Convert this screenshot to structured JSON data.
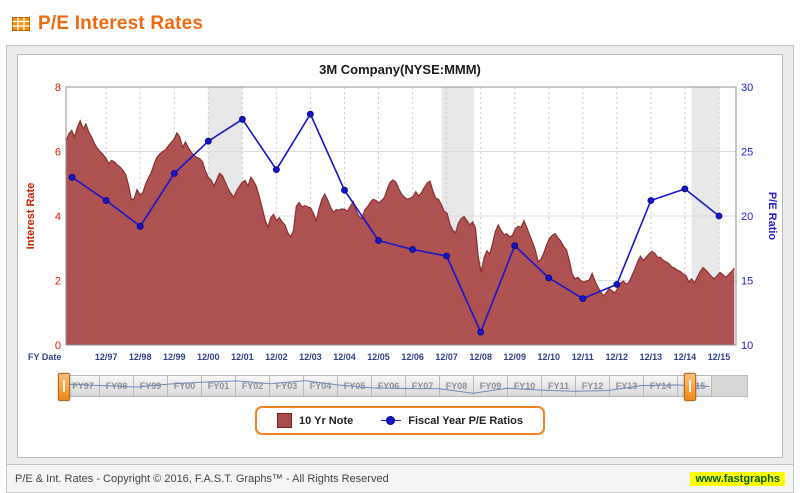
{
  "header": {
    "title": "P/E Interest Rates"
  },
  "chart_data": {
    "type": "line",
    "title": "3M Company(NYSE:MMM)",
    "x_axis_label": "FY Date",
    "x_tick_labels": [
      "12/97",
      "12/98",
      "12/99",
      "12/00",
      "12/01",
      "12/02",
      "12/03",
      "12/04",
      "12/05",
      "12/06",
      "12/07",
      "12/08",
      "12/09",
      "12/10",
      "12/11",
      "12/12",
      "12/13",
      "12/14",
      "12/15"
    ],
    "x_tick_positions": [
      1997,
      1998,
      1999,
      2000,
      2001,
      2002,
      2003,
      2004,
      2005,
      2006,
      2007,
      2008,
      2009,
      2010,
      2011,
      2012,
      2013,
      2014,
      2015
    ],
    "x_range": [
      1995.82,
      2015.5
    ],
    "left_axis": {
      "label": "Interest Rate",
      "ticks": [
        0,
        2,
        4,
        6,
        8
      ],
      "range": [
        0,
        8
      ],
      "color": "#cc2200"
    },
    "right_axis": {
      "label": "P/E Ratio",
      "ticks": [
        10,
        15,
        20,
        25,
        30
      ],
      "range": [
        10,
        30
      ],
      "color": "#2222cc"
    },
    "grid_bands": [
      [
        2000.0,
        2001.0
      ],
      [
        2006.85,
        2007.8
      ],
      [
        2014.2,
        2015.02
      ]
    ],
    "series": [
      {
        "name": "10 Yr Note",
        "type": "area",
        "axis": "left",
        "fill": "#af5252",
        "stroke": "#8a2e2e",
        "x_start": 1995.82,
        "x_end": 2015.45,
        "values": [
          6.3,
          6.55,
          6.65,
          6.45,
          6.75,
          6.95,
          6.7,
          6.85,
          6.6,
          6.45,
          6.25,
          6.1,
          6.0,
          5.9,
          5.8,
          5.62,
          5.72,
          5.68,
          5.58,
          5.52,
          5.42,
          5.28,
          4.95,
          4.5,
          4.55,
          4.82,
          4.65,
          4.72,
          4.98,
          5.18,
          5.35,
          5.62,
          5.82,
          5.92,
          6.0,
          6.05,
          6.18,
          6.28,
          6.38,
          6.58,
          6.45,
          6.12,
          6.3,
          6.12,
          5.98,
          5.88,
          5.82,
          5.78,
          5.68,
          5.4,
          5.2,
          5.12,
          4.92,
          5.12,
          5.32,
          5.25,
          5.05,
          4.85,
          4.7,
          4.58,
          4.78,
          4.92,
          5.05,
          5.1,
          4.92,
          5.2,
          5.08,
          4.9,
          4.58,
          4.25,
          3.88,
          3.65,
          3.95,
          4.05,
          3.85,
          3.95,
          3.82,
          3.72,
          3.48,
          3.35,
          3.55,
          4.3,
          4.42,
          4.28,
          4.32,
          4.28,
          4.25,
          4.08,
          3.85,
          4.22,
          4.52,
          4.68,
          4.5,
          4.28,
          4.12,
          4.2,
          4.18,
          4.22,
          4.2,
          4.15,
          4.3,
          4.45,
          4.18,
          4.0,
          3.92,
          4.18,
          4.28,
          4.42,
          4.52,
          4.48,
          4.4,
          4.48,
          4.58,
          4.85,
          5.05,
          5.12,
          5.05,
          4.85,
          4.68,
          4.58,
          4.52,
          4.55,
          4.6,
          4.75,
          4.62,
          4.72,
          4.88,
          5.02,
          5.08,
          4.78,
          4.55,
          4.52,
          4.35,
          4.15,
          4.08,
          3.75,
          3.55,
          3.48,
          3.78,
          3.92,
          3.98,
          3.85,
          3.72,
          3.82,
          3.62,
          2.7,
          2.25,
          2.7,
          2.92,
          2.82,
          3.15,
          3.52,
          3.72,
          3.55,
          3.42,
          3.45,
          3.35,
          3.4,
          3.6,
          3.68,
          3.65,
          3.85,
          3.65,
          3.42,
          3.2,
          2.95,
          2.58,
          2.65,
          2.85,
          3.1,
          3.3,
          3.4,
          3.45,
          3.32,
          3.22,
          3.05,
          2.95,
          2.6,
          2.2,
          2.05,
          2.1,
          2.0,
          1.95,
          1.98,
          2.02,
          2.22,
          1.98,
          1.8,
          1.65,
          1.52,
          1.62,
          1.75,
          1.68,
          1.62,
          1.75,
          1.92,
          1.98,
          1.88,
          1.95,
          2.15,
          2.35,
          2.58,
          2.75,
          2.62,
          2.72,
          2.82,
          2.9,
          2.85,
          2.72,
          2.72,
          2.62,
          2.58,
          2.52,
          2.42,
          2.38,
          2.32,
          2.28,
          2.2,
          2.15,
          1.95,
          2.05,
          1.92,
          2.1,
          2.28,
          2.4,
          2.32,
          2.22,
          2.12,
          2.05,
          2.15,
          2.25,
          2.18,
          2.1,
          2.18,
          2.28,
          2.38
        ]
      },
      {
        "name": "Fiscal Year P/E Ratios",
        "type": "line",
        "axis": "right",
        "color": "#1515cc",
        "x": [
          1996,
          1997,
          1998,
          1999,
          2000,
          2001,
          2002,
          2003,
          2004,
          2005,
          2006,
          2007,
          2008,
          2009,
          2010,
          2011,
          2012,
          2013,
          2014,
          2015
        ],
        "values": [
          23.0,
          21.2,
          19.2,
          23.3,
          25.8,
          27.5,
          23.6,
          27.9,
          22.0,
          18.1,
          17.4,
          16.9,
          11.0,
          17.7,
          15.2,
          13.6,
          14.7,
          21.2,
          22.1,
          20.0
        ]
      }
    ]
  },
  "slider": {
    "labels": [
      "FY97",
      "FY98",
      "FY99",
      "FY00",
      "FY01",
      "FY02",
      "FY03",
      "FY04",
      "FY05",
      "FY06",
      "FY07",
      "FY08",
      "FY09",
      "FY10",
      "FY11",
      "FY12",
      "FY13",
      "FY14",
      "FY15"
    ]
  },
  "footer": {
    "copyright": "P/E & Int. Rates - Copyright © 2016, F.A.S.T. Graphs™ - All Rights Reserved",
    "watermark": "www.fastgraphs"
  }
}
